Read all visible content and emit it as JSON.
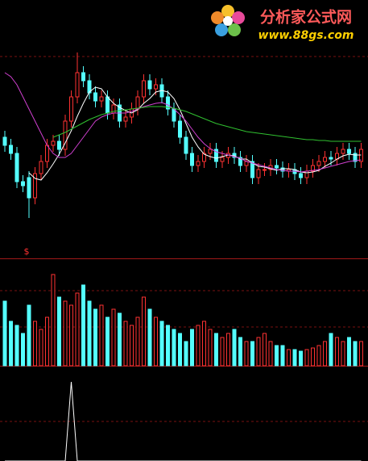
{
  "watermark": {
    "title": "分析家公式网",
    "url": "www.88gs.com"
  },
  "chart_data": [
    {
      "type": "candlestick",
      "annotation": "$",
      "ylim": [
        -20,
        300
      ],
      "up_color": "#ff3232",
      "down_color": "#54ffff",
      "open": [
        130,
        120,
        110,
        75,
        80,
        55,
        85,
        100,
        120,
        125,
        115,
        150,
        180,
        210,
        200,
        185,
        175,
        180,
        160,
        170,
        150,
        155,
        165,
        180,
        200,
        190,
        195,
        180,
        165,
        150,
        130,
        110,
        95,
        100,
        110,
        115,
        100,
        105,
        110,
        105,
        95,
        100,
        80,
        90,
        90,
        95,
        92,
        88,
        90,
        85,
        80,
        88,
        95,
        100,
        105,
        103,
        110,
        115,
        110,
        100
      ],
      "high": [
        138,
        128,
        118,
        83,
        88,
        93,
        108,
        128,
        133,
        133,
        158,
        188,
        235,
        218,
        208,
        193,
        188,
        188,
        178,
        178,
        163,
        173,
        188,
        208,
        208,
        203,
        203,
        188,
        173,
        158,
        138,
        118,
        108,
        118,
        123,
        123,
        113,
        118,
        118,
        113,
        108,
        108,
        98,
        98,
        103,
        103,
        100,
        98,
        98,
        93,
        96,
        103,
        108,
        113,
        113,
        118,
        123,
        123,
        118,
        123
      ],
      "low": [
        112,
        102,
        67,
        62,
        30,
        47,
        77,
        92,
        112,
        107,
        107,
        142,
        172,
        192,
        177,
        167,
        167,
        152,
        152,
        142,
        142,
        147,
        157,
        172,
        182,
        182,
        172,
        157,
        142,
        122,
        102,
        87,
        87,
        92,
        102,
        92,
        92,
        97,
        97,
        87,
        87,
        72,
        72,
        82,
        82,
        84,
        80,
        80,
        77,
        72,
        72,
        80,
        87,
        92,
        95,
        95,
        102,
        102,
        92,
        92
      ],
      "close": [
        120,
        110,
        75,
        70,
        55,
        85,
        100,
        120,
        125,
        115,
        150,
        180,
        210,
        200,
        185,
        175,
        180,
        160,
        170,
        150,
        155,
        165,
        180,
        200,
        190,
        195,
        180,
        165,
        150,
        130,
        110,
        95,
        100,
        110,
        115,
        100,
        105,
        110,
        105,
        95,
        100,
        80,
        90,
        90,
        95,
        92,
        88,
        90,
        85,
        80,
        88,
        95,
        100,
        105,
        103,
        110,
        115,
        110,
        100,
        115
      ],
      "series": [
        {
          "color": "#ffffff",
          "values": [
            null,
            null,
            null,
            null,
            86,
            79,
            77,
            86,
            97,
            109,
            123,
            138,
            156,
            172,
            186,
            192,
            190,
            180,
            172,
            167,
            163,
            160,
            164,
            172,
            178,
            186,
            188,
            186,
            178,
            164,
            147,
            130,
            118,
            109,
            106,
            104,
            106,
            108,
            107,
            103,
            103,
            98,
            94,
            93,
            91,
            89,
            91,
            91,
            90,
            87,
            86,
            87,
            89,
            94,
            98,
            103,
            107,
            109,
            108,
            108
          ]
        },
        {
          "color": "#d040d0",
          "values": [
            210,
            205,
            195,
            180,
            165,
            150,
            135,
            120,
            110,
            105,
            105,
            110,
            120,
            130,
            140,
            150,
            155,
            158,
            160,
            160,
            160,
            162,
            165,
            168,
            170,
            172,
            173,
            170,
            165,
            158,
            150,
            140,
            130,
            122,
            116,
            112,
            110,
            108,
            106,
            104,
            100,
            98,
            96,
            94,
            92,
            90,
            89,
            88,
            88,
            87,
            88,
            89,
            90,
            92,
            94,
            96,
            98,
            100,
            101,
            102
          ]
        },
        {
          "color": "#30c030",
          "values": [
            null,
            null,
            null,
            null,
            null,
            null,
            null,
            null,
            130,
            133,
            136,
            140,
            144,
            148,
            152,
            155,
            158,
            160,
            162,
            163,
            164,
            165,
            166,
            167,
            168,
            168,
            168,
            167,
            166,
            164,
            162,
            159,
            156,
            153,
            150,
            147,
            145,
            143,
            141,
            139,
            137,
            136,
            135,
            134,
            133,
            132,
            131,
            130,
            129,
            128,
            127,
            127,
            126,
            126,
            125,
            125,
            125,
            125,
            125,
            125
          ]
        }
      ]
    },
    {
      "type": "bar",
      "ylim": [
        0,
        133
      ],
      "values": [
        80,
        55,
        50,
        40,
        75,
        55,
        45,
        60,
        113,
        85,
        80,
        75,
        90,
        100,
        80,
        70,
        75,
        60,
        70,
        65,
        55,
        50,
        60,
        85,
        70,
        60,
        55,
        50,
        45,
        40,
        30,
        45,
        50,
        55,
        45,
        40,
        35,
        40,
        45,
        35,
        30,
        30,
        35,
        40,
        30,
        25,
        25,
        20,
        20,
        18,
        20,
        22,
        25,
        30,
        40,
        35,
        30,
        35,
        30,
        30
      ]
    },
    {
      "type": "line",
      "ylim": [
        0,
        100
      ],
      "color": "#ffffff",
      "values": [
        0,
        0,
        0,
        0,
        0,
        0,
        0,
        0,
        0,
        0,
        0,
        100,
        0,
        0,
        0,
        0,
        0,
        0,
        0,
        0,
        0,
        0,
        0,
        0,
        0,
        0,
        0,
        0,
        0,
        0,
        0,
        0,
        0,
        0,
        0,
        0,
        0,
        0,
        0,
        0,
        0,
        0,
        0,
        0,
        0,
        0,
        0,
        0,
        0,
        0,
        0,
        0,
        0,
        0,
        0,
        0,
        0,
        0,
        0,
        0
      ]
    }
  ]
}
